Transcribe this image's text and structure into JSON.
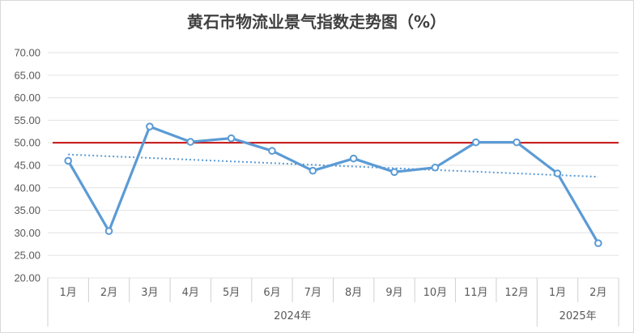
{
  "chart_data": {
    "type": "line",
    "title": "黄石市物流业景气指数走势图（%）",
    "xlabel": "",
    "ylabel": "",
    "ylim": [
      20,
      70
    ],
    "yticks": [
      "70.00",
      "65.00",
      "60.00",
      "55.00",
      "50.00",
      "45.00",
      "40.00",
      "35.00",
      "30.00",
      "25.00",
      "20.00"
    ],
    "categories": [
      "1月",
      "2月",
      "3月",
      "4月",
      "5月",
      "6月",
      "7月",
      "8月",
      "9月",
      "10月",
      "11月",
      "12月",
      "1月",
      "2月"
    ],
    "groups": [
      {
        "label": "2024年",
        "start": 0,
        "end": 11
      },
      {
        "label": "2025年",
        "start": 12,
        "end": 13
      }
    ],
    "series": [
      {
        "values": [
          46.0,
          30.4,
          53.6,
          50.2,
          51.0,
          48.2,
          43.8,
          46.5,
          43.5,
          44.5,
          50.1,
          50.1,
          43.2,
          27.7
        ],
        "color": "#5b9bd5"
      }
    ],
    "reference_line": {
      "value": 50,
      "color": "#c00000"
    },
    "trendline": {
      "type": "linear",
      "color": "#5b9bd5",
      "style": "dotted"
    },
    "grid": true,
    "legend": "none"
  }
}
